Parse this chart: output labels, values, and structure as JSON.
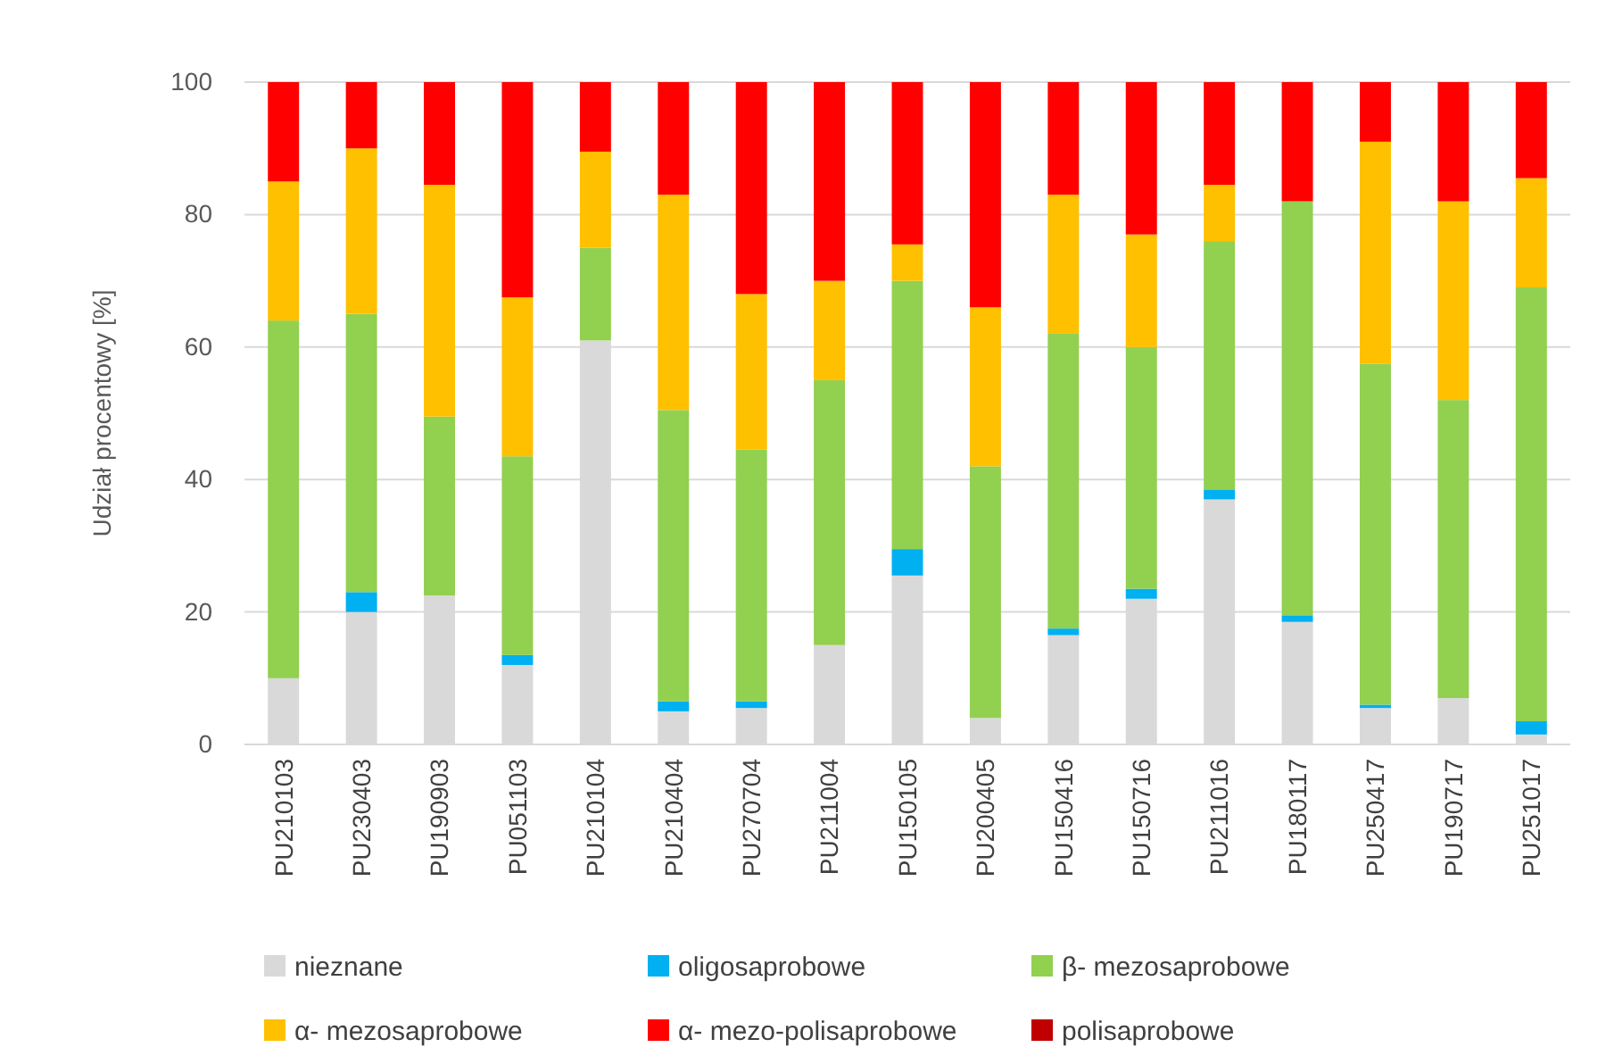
{
  "chart_data": {
    "type": "bar",
    "stacked": true,
    "ylabel": "Udział procentowy [%]",
    "categories": [
      "PU210103",
      "PU230403",
      "PU190903",
      "PU051103",
      "PU210104",
      "PU210404",
      "PU270704",
      "PU211004",
      "PU150105",
      "PU200405",
      "PU150416",
      "PU150716",
      "PU211016",
      "PU180117",
      "PU250417",
      "PU190717",
      "PU251017"
    ],
    "series": [
      {
        "name": "nieznane",
        "color": "#d9d9d9",
        "values": [
          10,
          20,
          22.5,
          12,
          61,
          5,
          5.5,
          15,
          25.5,
          4,
          16.5,
          22,
          37,
          18.5,
          5.5,
          7,
          1.5
        ]
      },
      {
        "name": "oligosaprobowe",
        "color": "#00b0f0",
        "values": [
          0,
          3,
          0,
          1.5,
          0,
          1.5,
          1,
          0,
          4,
          0,
          1,
          1.5,
          1.5,
          1,
          0.5,
          0,
          2
        ]
      },
      {
        "name": "β- mezosaprobowe",
        "color": "#92d050",
        "values": [
          54,
          42,
          27,
          30,
          14,
          44,
          38,
          40,
          40.5,
          38,
          44.5,
          36.5,
          37.5,
          62.5,
          51.5,
          45,
          65.5
        ]
      },
      {
        "name": "α- mezosaprobowe",
        "color": "#ffc000",
        "values": [
          21,
          25,
          35,
          24,
          14.5,
          32.5,
          23.5,
          15,
          5.5,
          24,
          21,
          17,
          8.5,
          0,
          33.5,
          30,
          16.5
        ]
      },
      {
        "name": "α- mezo-polisaprobowe",
        "color": "#ff0000",
        "values": [
          15,
          10,
          15.5,
          32.5,
          10.5,
          17,
          32,
          30,
          24.5,
          34,
          17,
          23,
          15.5,
          18,
          9,
          18,
          14.5
        ]
      },
      {
        "name": "polisaprobowe",
        "color": "#c00000",
        "values": [
          0,
          0,
          0,
          0,
          0,
          0,
          0,
          0,
          0,
          0,
          0,
          0,
          0,
          0,
          0,
          0,
          0
        ]
      }
    ],
    "ylim": [
      0,
      100
    ],
    "yticks": [
      0,
      20,
      40,
      60,
      80,
      100
    ],
    "grid": "y",
    "legend": "bottom"
  }
}
